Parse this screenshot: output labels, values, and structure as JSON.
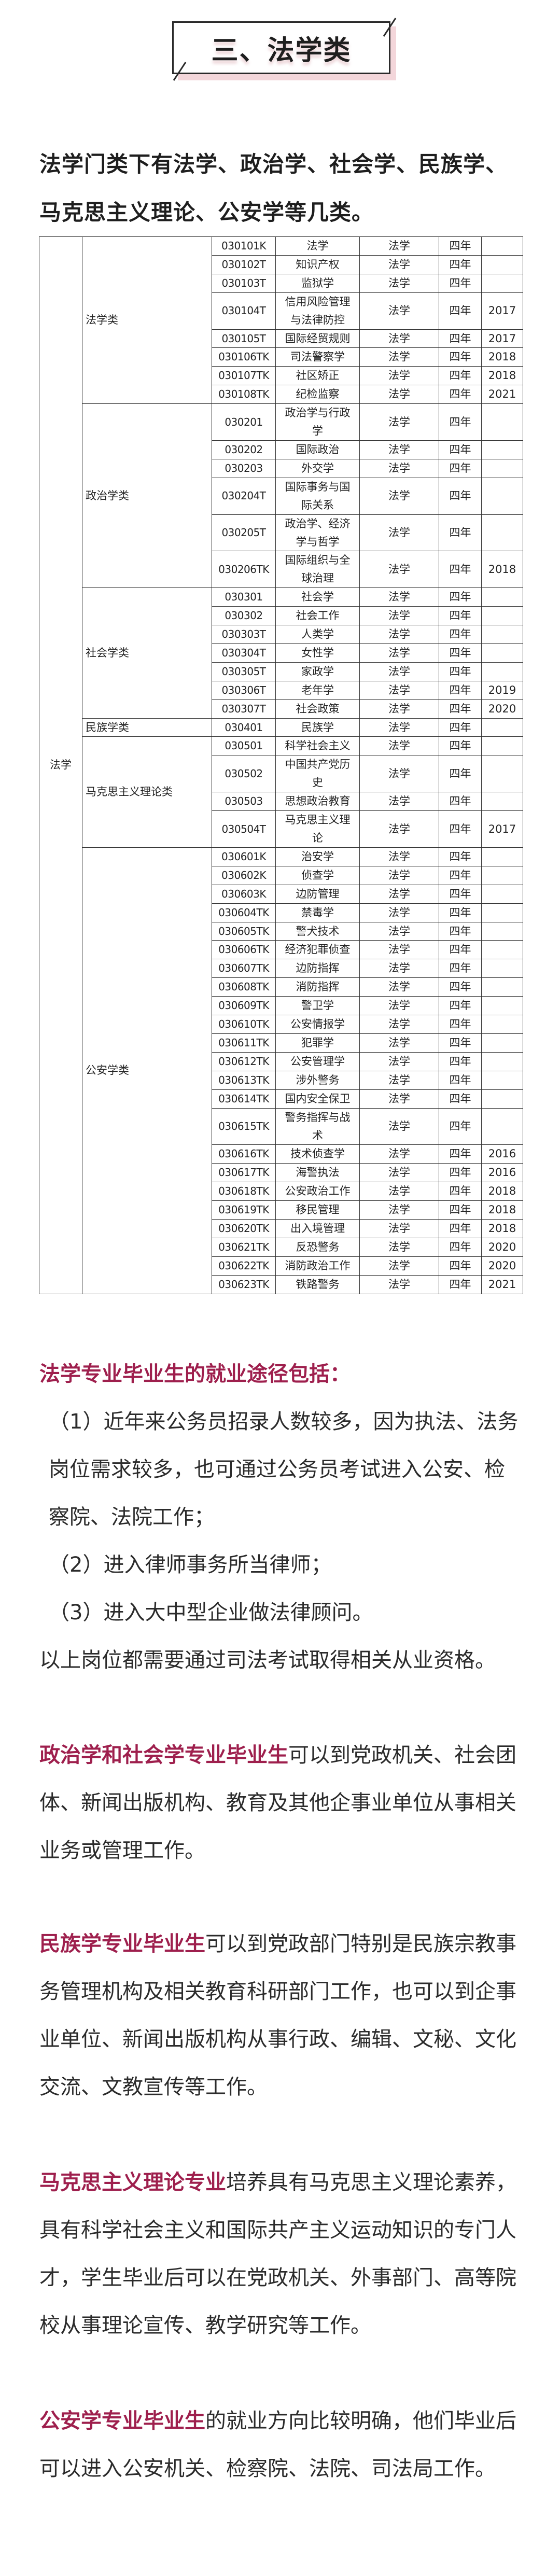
{
  "section_title": "三、法学类",
  "intro": "法学门类下有法学、政治学、社会学、民族学、马克思主义理论、公安学等几类。",
  "accent_color": "#9e1f4d",
  "table": {
    "discipline": "法学",
    "groups": [
      {
        "name": "法学类",
        "rows": [
          [
            "030101K",
            "法学",
            "法学",
            "四年",
            ""
          ],
          [
            "030102T",
            "知识产权",
            "法学",
            "四年",
            ""
          ],
          [
            "030103T",
            "监狱学",
            "法学",
            "四年",
            ""
          ],
          [
            "030104T",
            "信用风险管理与法律防控",
            "法学",
            "四年",
            "2017"
          ],
          [
            "030105T",
            "国际经贸规则",
            "法学",
            "四年",
            "2017"
          ],
          [
            "030106TK",
            "司法警察学",
            "法学",
            "四年",
            "2018"
          ],
          [
            "030107TK",
            "社区矫正",
            "法学",
            "四年",
            "2018"
          ],
          [
            "030108TK",
            "纪检监察",
            "法学",
            "四年",
            "2021"
          ]
        ]
      },
      {
        "name": "政治学类",
        "rows": [
          [
            "030201",
            "政治学与行政学",
            "法学",
            "四年",
            ""
          ],
          [
            "030202",
            "国际政治",
            "法学",
            "四年",
            ""
          ],
          [
            "030203",
            "外交学",
            "法学",
            "四年",
            ""
          ],
          [
            "030204T",
            "国际事务与国际关系",
            "法学",
            "四年",
            ""
          ],
          [
            "030205T",
            "政治学、经济学与哲学",
            "法学",
            "四年",
            ""
          ],
          [
            "030206TK",
            "国际组织与全球治理",
            "法学",
            "四年",
            "2018"
          ]
        ]
      },
      {
        "name": "社会学类",
        "rows": [
          [
            "030301",
            "社会学",
            "法学",
            "四年",
            ""
          ],
          [
            "030302",
            "社会工作",
            "法学",
            "四年",
            ""
          ],
          [
            "030303T",
            "人类学",
            "法学",
            "四年",
            ""
          ],
          [
            "030304T",
            "女性学",
            "法学",
            "四年",
            ""
          ],
          [
            "030305T",
            "家政学",
            "法学",
            "四年",
            ""
          ],
          [
            "030306T",
            "老年学",
            "法学",
            "四年",
            "2019"
          ],
          [
            "030307T",
            "社会政策",
            "法学",
            "四年",
            "2020"
          ]
        ]
      },
      {
        "name": "民族学类",
        "rows": [
          [
            "030401",
            "民族学",
            "法学",
            "四年",
            ""
          ]
        ]
      },
      {
        "name": "马克思主义理论类",
        "rows": [
          [
            "030501",
            "科学社会主义",
            "法学",
            "四年",
            ""
          ],
          [
            "030502",
            "中国共产党历史",
            "法学",
            "四年",
            ""
          ],
          [
            "030503",
            "思想政治教育",
            "法学",
            "四年",
            ""
          ],
          [
            "030504T",
            "马克思主义理论",
            "法学",
            "四年",
            "2017"
          ]
        ]
      },
      {
        "name": "公安学类",
        "rows": [
          [
            "030601K",
            "治安学",
            "法学",
            "四年",
            ""
          ],
          [
            "030602K",
            "侦查学",
            "法学",
            "四年",
            ""
          ],
          [
            "030603K",
            "边防管理",
            "法学",
            "四年",
            ""
          ],
          [
            "030604TK",
            "禁毒学",
            "法学",
            "四年",
            ""
          ],
          [
            "030605TK",
            "警犬技术",
            "法学",
            "四年",
            ""
          ],
          [
            "030606TK",
            "经济犯罪侦查",
            "法学",
            "四年",
            ""
          ],
          [
            "030607TK",
            "边防指挥",
            "法学",
            "四年",
            ""
          ],
          [
            "030608TK",
            "消防指挥",
            "法学",
            "四年",
            ""
          ],
          [
            "030609TK",
            "警卫学",
            "法学",
            "四年",
            ""
          ],
          [
            "030610TK",
            "公安情报学",
            "法学",
            "四年",
            ""
          ],
          [
            "030611TK",
            "犯罪学",
            "法学",
            "四年",
            ""
          ],
          [
            "030612TK",
            "公安管理学",
            "法学",
            "四年",
            ""
          ],
          [
            "030613TK",
            "涉外警务",
            "法学",
            "四年",
            ""
          ],
          [
            "030614TK",
            "国内安全保卫",
            "法学",
            "四年",
            ""
          ],
          [
            "030615TK",
            "警务指挥与战术",
            "法学",
            "四年",
            ""
          ],
          [
            "030616TK",
            "技术侦查学",
            "法学",
            "四年",
            "2016"
          ],
          [
            "030617TK",
            "海警执法",
            "法学",
            "四年",
            "2016"
          ],
          [
            "030618TK",
            "公安政治工作",
            "法学",
            "四年",
            "2018"
          ],
          [
            "030619TK",
            "移民管理",
            "法学",
            "四年",
            "2018"
          ],
          [
            "030620TK",
            "出入境管理",
            "法学",
            "四年",
            "2018"
          ],
          [
            "030621TK",
            "反恐警务",
            "法学",
            "四年",
            "2020"
          ],
          [
            "030622TK",
            "消防政治工作",
            "法学",
            "四年",
            "2020"
          ],
          [
            "030623TK",
            "铁路警务",
            "法学",
            "四年",
            "2021"
          ]
        ]
      }
    ]
  },
  "law": {
    "heading": "法学专业毕业生的就业途径包括：",
    "item1": "（1）近年来公务员招录人数较多，因为执法、法务岗位需求较多，也可通过公务员考试进入公安、检察院、法院工作；",
    "item2": "（2）进入律师事务所当律师；",
    "item3": "（3）进入大中型企业做法律顾问。",
    "note": "以上岗位都需要通过司法考试取得相关从业资格。"
  },
  "politics": {
    "highlight": "政治学和社会学专业毕业生",
    "text": "可以到党政机关、社会团体、新闻出版机构、教育及其他企事业单位从事相关业务或管理工作。"
  },
  "ethnology": {
    "highlight": "民族学专业毕业生",
    "text": "可以到党政部门特别是民族宗教事务管理机构及相关教育科研部门工作，也可以到企事业单位、新闻出版机构从事行政、编辑、文秘、文化交流、文教宣传等工作。"
  },
  "marxism": {
    "highlight": "马克思主义理论专业",
    "text": "培养具有马克思主义理论素养，具有科学社会主义和国际共产主义运动知识的专门人才，学生毕业后可以在党政机关、外事部门、高等院校从事理论宣传、教学研究等工作。"
  },
  "police": {
    "highlight": "公安学专业毕业生",
    "text": "的就业方向比较明确，他们毕业后可以进入公安机关、检察院、法院、司法局工作。"
  }
}
